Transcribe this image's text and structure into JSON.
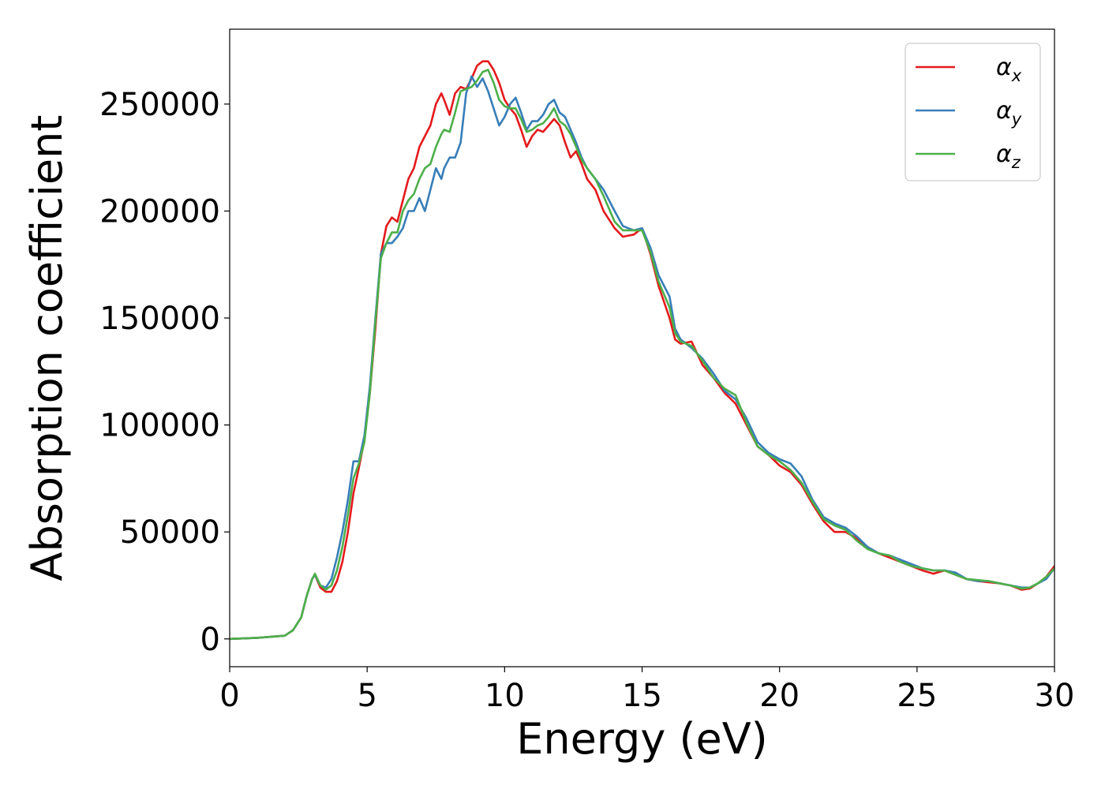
{
  "chart_data": {
    "type": "line",
    "xlabel": "Energy (eV)",
    "ylabel": "Absorption coefficient",
    "xlim": [
      0,
      30
    ],
    "ylim": [
      -13000,
      285000
    ],
    "xticks": [
      0,
      5,
      10,
      15,
      20,
      25,
      30
    ],
    "xtick_labels": [
      "0",
      "5",
      "10",
      "15",
      "20",
      "25",
      "30"
    ],
    "yticks": [
      0,
      50000,
      100000,
      150000,
      200000,
      250000
    ],
    "ytick_labels": [
      "0",
      "50000",
      "100000",
      "150000",
      "200000",
      "250000"
    ],
    "grid": false,
    "legend": "top-right",
    "series": [
      {
        "name": "α",
        "subscript": "x",
        "color": "#e41a1c",
        "x": [
          0,
          1,
          2,
          2.3,
          2.6,
          2.8,
          3.0,
          3.1,
          3.3,
          3.5,
          3.7,
          3.9,
          4.1,
          4.3,
          4.5,
          4.7,
          4.9,
          5.1,
          5.3,
          5.5,
          5.7,
          5.9,
          6.1,
          6.3,
          6.5,
          6.7,
          6.9,
          7.1,
          7.3,
          7.5,
          7.7,
          7.8,
          8.0,
          8.2,
          8.4,
          8.6,
          8.8,
          9.0,
          9.2,
          9.4,
          9.6,
          9.8,
          10.0,
          10.2,
          10.4,
          10.6,
          10.8,
          11.0,
          11.2,
          11.4,
          11.6,
          11.8,
          12.0,
          12.2,
          12.4,
          12.6,
          12.8,
          13.0,
          13.3,
          13.6,
          14.0,
          14.3,
          14.7,
          15.0,
          15.3,
          15.6,
          16.0,
          16.2,
          16.4,
          16.8,
          17.2,
          17.6,
          18.0,
          18.4,
          18.8,
          19.2,
          19.6,
          20.0,
          20.4,
          20.8,
          21.2,
          21.6,
          22.0,
          22.4,
          22.8,
          23.2,
          23.6,
          24.0,
          24.4,
          24.8,
          25.2,
          25.6,
          26.0,
          26.4,
          26.8,
          27.2,
          27.6,
          28.0,
          28.4,
          28.8,
          29.1,
          29.4,
          29.7,
          30.0
        ],
        "y": [
          0,
          500,
          1500,
          4000,
          10000,
          20000,
          28000,
          30000,
          24000,
          22000,
          22000,
          27000,
          36000,
          50000,
          68000,
          80000,
          93000,
          115000,
          145000,
          180000,
          193000,
          197000,
          195000,
          205000,
          215000,
          220000,
          230000,
          235000,
          240000,
          250000,
          255000,
          252000,
          245000,
          255000,
          258000,
          257000,
          262000,
          268000,
          270000,
          270000,
          266000,
          260000,
          252000,
          248000,
          245000,
          238000,
          230000,
          235000,
          238000,
          237000,
          240000,
          243000,
          240000,
          232000,
          225000,
          228000,
          222000,
          215000,
          210000,
          200000,
          192000,
          188000,
          189000,
          192000,
          180000,
          165000,
          150000,
          140000,
          138000,
          139000,
          128000,
          122000,
          115000,
          110000,
          100000,
          90000,
          86000,
          81000,
          78000,
          72000,
          63000,
          55000,
          50000,
          50000,
          47000,
          43000,
          40000,
          38000,
          36000,
          34000,
          32000,
          30500,
          32000,
          30000,
          28000,
          27000,
          26500,
          26000,
          25000,
          23000,
          23500,
          26000,
          29000,
          34000
        ]
      },
      {
        "name": "α",
        "subscript": "y",
        "color": "#377eb8",
        "x": [
          0,
          1,
          2,
          2.3,
          2.6,
          2.8,
          3.0,
          3.1,
          3.3,
          3.5,
          3.7,
          3.9,
          4.1,
          4.3,
          4.5,
          4.7,
          4.9,
          5.1,
          5.3,
          5.5,
          5.7,
          5.9,
          6.1,
          6.3,
          6.5,
          6.7,
          6.9,
          7.1,
          7.3,
          7.5,
          7.7,
          7.8,
          8.0,
          8.2,
          8.4,
          8.6,
          8.8,
          9.0,
          9.2,
          9.4,
          9.6,
          9.8,
          10.0,
          10.2,
          10.4,
          10.6,
          10.8,
          11.0,
          11.2,
          11.4,
          11.6,
          11.8,
          12.0,
          12.2,
          12.4,
          12.6,
          12.8,
          13.0,
          13.3,
          13.6,
          14.0,
          14.3,
          14.7,
          15.0,
          15.3,
          15.6,
          16.0,
          16.2,
          16.4,
          16.8,
          17.2,
          17.6,
          18.0,
          18.4,
          18.8,
          19.2,
          19.6,
          20.0,
          20.4,
          20.8,
          21.2,
          21.6,
          22.0,
          22.4,
          22.8,
          23.2,
          23.6,
          24.0,
          24.4,
          24.8,
          25.2,
          25.6,
          26.0,
          26.4,
          26.8,
          27.2,
          27.6,
          28.0,
          28.4,
          28.8,
          29.1,
          29.4,
          29.7,
          30.0
        ],
        "y": [
          0,
          500,
          1500,
          4000,
          10000,
          20000,
          28000,
          30000,
          25000,
          24000,
          28000,
          38000,
          50000,
          65000,
          83000,
          83000,
          95000,
          118000,
          150000,
          180000,
          185000,
          185000,
          188000,
          192000,
          200000,
          200000,
          206000,
          200000,
          210000,
          220000,
          215000,
          220000,
          225000,
          225000,
          232000,
          255000,
          263000,
          258000,
          262000,
          256000,
          248000,
          240000,
          244000,
          250000,
          253000,
          246000,
          238000,
          242000,
          242000,
          245000,
          250000,
          252000,
          246000,
          244000,
          238000,
          232000,
          225000,
          220000,
          215000,
          210000,
          200000,
          193000,
          191000,
          192000,
          183000,
          170000,
          160000,
          145000,
          140000,
          136000,
          131000,
          124000,
          116000,
          112000,
          103000,
          92000,
          87000,
          84000,
          82000,
          76000,
          65000,
          57000,
          54000,
          52000,
          48000,
          43000,
          40000,
          39000,
          37000,
          35000,
          33000,
          32000,
          32000,
          31000,
          28000,
          27000,
          27000,
          26000,
          25000,
          24000,
          24000,
          26000,
          28000,
          33000
        ]
      },
      {
        "name": "α",
        "subscript": "z",
        "color": "#4daf4a",
        "x": [
          0,
          1,
          2,
          2.3,
          2.6,
          2.8,
          3.0,
          3.1,
          3.3,
          3.5,
          3.7,
          3.9,
          4.1,
          4.3,
          4.5,
          4.7,
          4.9,
          5.1,
          5.3,
          5.5,
          5.7,
          5.9,
          6.1,
          6.3,
          6.5,
          6.7,
          6.9,
          7.1,
          7.3,
          7.5,
          7.7,
          7.8,
          8.0,
          8.2,
          8.4,
          8.6,
          8.8,
          9.0,
          9.2,
          9.4,
          9.6,
          9.8,
          10.0,
          10.2,
          10.4,
          10.6,
          10.8,
          11.0,
          11.2,
          11.4,
          11.6,
          11.8,
          12.0,
          12.2,
          12.4,
          12.6,
          12.8,
          13.0,
          13.3,
          13.6,
          14.0,
          14.3,
          14.7,
          15.0,
          15.3,
          15.6,
          16.0,
          16.2,
          16.4,
          16.8,
          17.2,
          17.6,
          18.0,
          18.4,
          18.8,
          19.2,
          19.6,
          20.0,
          20.4,
          20.8,
          21.2,
          21.6,
          22.0,
          22.4,
          22.8,
          23.2,
          23.6,
          24.0,
          24.4,
          24.8,
          25.2,
          25.6,
          26.0,
          26.4,
          26.8,
          27.2,
          27.6,
          28.0,
          28.4,
          28.8,
          29.1,
          29.4,
          29.7,
          30.0
        ],
        "y": [
          0,
          500,
          1500,
          4000,
          10000,
          20000,
          28000,
          30500,
          25000,
          23000,
          25000,
          32000,
          43000,
          58000,
          75000,
          82000,
          92000,
          115000,
          148000,
          178000,
          185000,
          190000,
          190000,
          200000,
          205000,
          208000,
          215000,
          220000,
          222000,
          230000,
          236000,
          238000,
          237000,
          246000,
          256000,
          257000,
          258000,
          261000,
          265000,
          266000,
          260000,
          252000,
          249000,
          248000,
          248000,
          243000,
          237000,
          238000,
          240000,
          241000,
          244000,
          248000,
          242000,
          240000,
          236000,
          230000,
          224000,
          220000,
          215000,
          207000,
          195000,
          191000,
          191000,
          191000,
          181000,
          167000,
          155000,
          143000,
          139000,
          137000,
          130000,
          122000,
          117000,
          114000,
          101000,
          90000,
          86000,
          83000,
          79000,
          73000,
          64000,
          56000,
          53000,
          51000,
          46000,
          42000,
          40000,
          39000,
          36000,
          34000,
          33000,
          32000,
          32000,
          30000,
          28000,
          27500,
          27000,
          26000,
          25000,
          23500,
          24000,
          26000,
          29000,
          33000
        ]
      }
    ]
  }
}
